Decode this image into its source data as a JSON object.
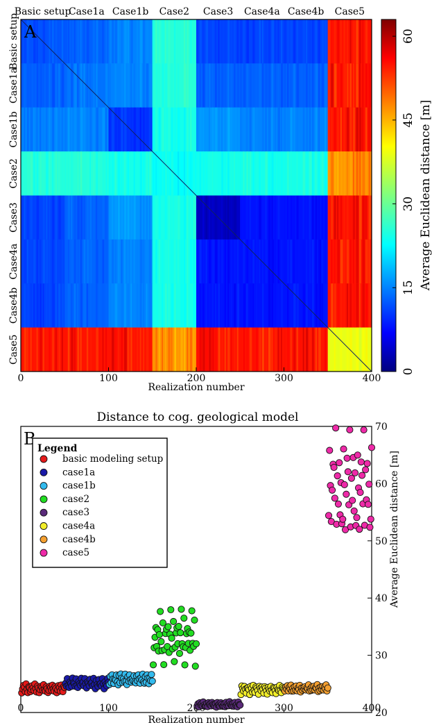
{
  "panel_a": {
    "letter": "A",
    "top_labels": [
      "Basic setup",
      "Case1a",
      "Case1b",
      "Case2",
      "Case3",
      "Case4a",
      "Case4b",
      "Case5"
    ],
    "left_labels": [
      "Basic setup",
      "Case1a",
      "Case1b",
      "Case2",
      "Case3",
      "Case4a",
      "Case4b",
      "Case5"
    ],
    "xlabel": "Realization number",
    "x_ticks": [
      "0",
      "100",
      "200",
      "300",
      "400"
    ],
    "colorbar_label": "Average Euclidean distance [m]",
    "colorbar_ticks": [
      "0",
      "15",
      "30",
      "45",
      "60"
    ]
  },
  "panel_b": {
    "letter": "B",
    "title": "Distance to cog. geological model",
    "xlabel": "Realization number",
    "ylabel": "Average Euclidean distance [m]",
    "x_ticks": [
      "0",
      "100",
      "200",
      "300",
      "400"
    ],
    "y_ticks": [
      "20",
      "30",
      "40",
      "50",
      "60",
      "70"
    ],
    "legend_title": "Legend"
  },
  "colors": {
    "basic modeling setup": "#e51a1a",
    "case1a": "#1a1aa8",
    "case1b": "#33bbee",
    "case2": "#22dd22",
    "case3": "#5a2a7a",
    "case4a": "#f2ee2a",
    "case4b": "#f5a030",
    "case5": "#ee2aa8"
  },
  "chart_data": [
    {
      "type": "heatmap",
      "title": "",
      "xlabel": "Realization number",
      "ylabel": "",
      "xlim": [
        0,
        400
      ],
      "ylim": [
        0,
        400
      ],
      "colormap": "jet",
      "color_range": [
        0,
        63
      ],
      "blocks": [
        "Basic setup",
        "Case1a",
        "Case1b",
        "Case2",
        "Case3",
        "Case4a",
        "Case4b",
        "Case5"
      ],
      "block_ranges": [
        [
          0,
          50
        ],
        [
          50,
          100
        ],
        [
          100,
          150
        ],
        [
          150,
          200
        ],
        [
          200,
          250
        ],
        [
          250,
          300
        ],
        [
          300,
          350
        ],
        [
          350,
          400
        ]
      ],
      "block_mean_distance_matrix": [
        [
          13,
          14,
          16,
          26,
          12,
          12,
          12,
          54
        ],
        [
          14,
          15,
          16,
          26,
          14,
          14,
          14,
          54
        ],
        [
          16,
          16,
          11,
          25,
          17,
          16,
          16,
          54
        ],
        [
          26,
          26,
          25,
          24,
          25,
          25,
          25,
          46
        ],
        [
          12,
          14,
          17,
          25,
          4,
          9,
          9,
          54
        ],
        [
          12,
          14,
          16,
          25,
          9,
          9,
          9,
          54
        ],
        [
          12,
          14,
          16,
          25,
          9,
          9,
          9,
          54
        ],
        [
          54,
          54,
          54,
          46,
          54,
          54,
          54,
          38
        ]
      ]
    },
    {
      "type": "scatter",
      "title": "Distance to cog. geological model",
      "xlabel": "Realization number",
      "ylabel": "Average Euclidean distance [m]",
      "xlim": [
        0,
        400
      ],
      "ylim": [
        20,
        70
      ],
      "legend_position": "top-left",
      "series": [
        {
          "name": "basic modeling setup",
          "x_range": [
            1,
            50
          ],
          "y_center": 24.2,
          "y_spread": 0.5,
          "y_anchor_values": [
            23.5,
            24.0,
            24.7,
            24.3,
            23.8,
            24.9,
            24.1,
            23.6,
            24.6,
            24.2
          ]
        },
        {
          "name": "case1a",
          "x_range": [
            51,
            100
          ],
          "y_center": 24.9,
          "y_spread": 0.6,
          "y_anchor_values": [
            25.2,
            24.5,
            25.8,
            24.9,
            24.3,
            25.5,
            25.0,
            24.6,
            25.9,
            25.1
          ]
        },
        {
          "name": "case1b",
          "x_range": [
            101,
            150
          ],
          "y_center": 25.6,
          "y_spread": 0.7,
          "y_anchor_values": [
            25.0,
            26.3,
            25.4,
            26.7,
            25.9,
            25.2,
            26.0,
            25.5,
            26.5,
            25.3
          ]
        },
        {
          "name": "case2",
          "x_range": [
            151,
            200
          ],
          "y_center": 33.0,
          "y_spread": 2.0,
          "y_anchor_values": [
            28.6,
            31.5,
            33.4,
            35.0,
            32.1,
            34.6,
            30.8,
            33.9,
            37.8,
            32.6,
            31.2,
            36.0
          ]
        },
        {
          "name": "case3",
          "x_range": [
            201,
            250
          ],
          "y_center": 21.4,
          "y_spread": 0.4,
          "y_anchor_values": [
            21.2,
            21.6,
            21.0,
            21.7,
            21.3,
            21.5,
            21.1,
            21.8,
            21.4,
            21.2
          ]
        },
        {
          "name": "case4a",
          "x_range": [
            251,
            300
          ],
          "y_center": 24.0,
          "y_spread": 0.5,
          "y_anchor_values": [
            23.2,
            24.5,
            24.1,
            23.7,
            24.6,
            24.0,
            23.5,
            24.4,
            24.2,
            23.9
          ]
        },
        {
          "name": "case4b",
          "x_range": [
            301,
            350
          ],
          "y_center": 24.1,
          "y_spread": 0.4,
          "y_anchor_values": [
            23.8,
            24.4,
            24.0,
            24.6,
            23.9,
            24.3,
            24.1,
            24.8,
            23.7,
            24.2
          ]
        },
        {
          "name": "case5",
          "x_range": [
            351,
            400
          ],
          "y_center": 59.0,
          "y_spread": 3.5,
          "y_anchor_values": [
            54.8,
            65.6,
            60.3,
            52.4,
            58.5,
            64.2,
            62.0,
            56.7,
            69.8,
            53.0,
            61.5,
            57.2,
            63.8,
            55.4,
            60.9,
            52.1
          ]
        }
      ]
    }
  ]
}
